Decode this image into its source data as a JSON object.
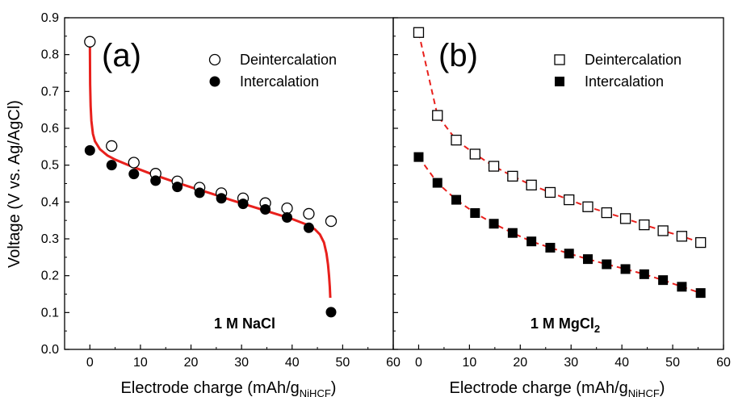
{
  "chart_data": [
    {
      "type": "scatter",
      "panel_tag": "(a)",
      "condition": "1 M NaCl",
      "xlim": [
        -5,
        60
      ],
      "ylim": [
        0.0,
        0.9
      ],
      "xticks": [
        "0",
        "10",
        "20",
        "30",
        "40",
        "50",
        "60"
      ],
      "yticks": [
        "0.0",
        "0.1",
        "0.2",
        "0.3",
        "0.4",
        "0.5",
        "0.6",
        "0.7",
        "0.8",
        "0.9"
      ],
      "xlabel": "Electrode charge (mAh/g",
      "xlabel_sub": "NiHCF",
      "xlabel_end": ")",
      "ylabel": "Voltage (V vs. Ag/AgCl)",
      "legend_position": "top-right",
      "series": [
        {
          "name": "Deintercalation",
          "marker": "open-circle",
          "x": [
            0,
            4.3,
            8.7,
            13.0,
            17.3,
            21.7,
            26.0,
            30.3,
            34.7,
            39.0,
            43.3,
            47.7
          ],
          "y": [
            0.835,
            0.552,
            0.507,
            0.477,
            0.456,
            0.439,
            0.424,
            0.41,
            0.397,
            0.383,
            0.368,
            0.348
          ]
        },
        {
          "name": "Intercalation",
          "marker": "filled-circle",
          "x": [
            0,
            4.3,
            8.7,
            13.0,
            17.3,
            21.7,
            26.0,
            30.3,
            34.7,
            39.0,
            43.3,
            47.7
          ],
          "y": [
            0.54,
            0.5,
            0.476,
            0.458,
            0.441,
            0.425,
            0.41,
            0.395,
            0.38,
            0.358,
            0.33,
            0.101
          ]
        },
        {
          "marker": "fit-line",
          "color": "#e8201c",
          "x": [
            0,
            0.05,
            0.15,
            0.3,
            0.6,
            1.0,
            2.0,
            3.5,
            5,
            8,
            12,
            16,
            20,
            24,
            28,
            32,
            36,
            40,
            43,
            44.5,
            45.5,
            46.3,
            46.8,
            47.1,
            47.3,
            47.45,
            47.55
          ],
          "y": [
            0.83,
            0.72,
            0.66,
            0.62,
            0.585,
            0.565,
            0.543,
            0.526,
            0.515,
            0.498,
            0.477,
            0.458,
            0.44,
            0.423,
            0.405,
            0.388,
            0.371,
            0.354,
            0.338,
            0.326,
            0.312,
            0.29,
            0.26,
            0.23,
            0.2,
            0.17,
            0.14
          ]
        }
      ]
    },
    {
      "type": "line",
      "panel_tag": "(b)",
      "condition": "1 M MgCl",
      "condition_sub": "2",
      "xlim": [
        -5,
        60
      ],
      "ylim": [
        0.0,
        0.9
      ],
      "xticks": [
        "0",
        "10",
        "20",
        "30",
        "40",
        "50",
        "60"
      ],
      "xlabel": "Electrode charge (mAh/g",
      "xlabel_sub": "NiHCF",
      "xlabel_end": ")",
      "legend_position": "top-right",
      "series": [
        {
          "name": "Deintercalation",
          "marker": "open-square",
          "line": "dashed",
          "color": "#e8201c",
          "x": [
            0,
            3.7,
            7.4,
            11.1,
            14.8,
            18.5,
            22.2,
            25.9,
            29.6,
            33.3,
            37.0,
            40.7,
            44.4,
            48.1,
            51.8,
            55.5
          ],
          "y": [
            0.86,
            0.635,
            0.568,
            0.53,
            0.497,
            0.47,
            0.446,
            0.426,
            0.406,
            0.387,
            0.371,
            0.355,
            0.338,
            0.322,
            0.307,
            0.29
          ]
        },
        {
          "name": "Intercalation",
          "marker": "filled-square",
          "line": "dashed",
          "color": "#e8201c",
          "x": [
            0,
            3.7,
            7.4,
            11.1,
            14.8,
            18.5,
            22.2,
            25.9,
            29.6,
            33.3,
            37.0,
            40.7,
            44.4,
            48.1,
            51.8,
            55.5
          ],
          "y": [
            0.522,
            0.452,
            0.406,
            0.37,
            0.341,
            0.316,
            0.293,
            0.276,
            0.26,
            0.245,
            0.231,
            0.218,
            0.204,
            0.188,
            0.17,
            0.153
          ]
        }
      ]
    }
  ]
}
